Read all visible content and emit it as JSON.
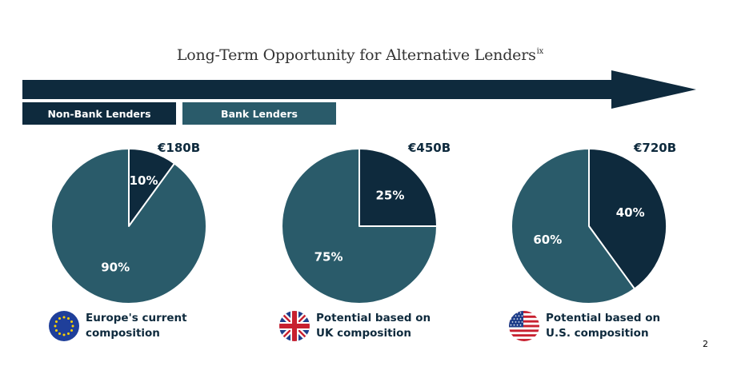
{
  "colors": {
    "non_bank": "#0e2a3d",
    "bank": "#2a5b6a",
    "arrow": "#0e2a3d"
  },
  "chart_data": {
    "type": "pie",
    "title": "Long-Term Opportunity for Alternative Lenders",
    "title_superscript": "ix",
    "legend": [
      "Non-Bank Lenders",
      "Bank Lenders"
    ],
    "charts": [
      {
        "total": "€180B",
        "caption_line1": "Europe's current",
        "caption_line2": "composition",
        "flag_icon": "eu-flag-icon",
        "slices": [
          {
            "label": "Non-Bank Lenders",
            "value": 10,
            "text": "10%"
          },
          {
            "label": "Bank Lenders",
            "value": 90,
            "text": "90%"
          }
        ]
      },
      {
        "total": "€450B",
        "caption_line1": "Potential based on",
        "caption_line2": "UK composition",
        "flag_icon": "uk-flag-icon",
        "slices": [
          {
            "label": "Non-Bank Lenders",
            "value": 25,
            "text": "25%"
          },
          {
            "label": "Bank Lenders",
            "value": 75,
            "text": "75%"
          }
        ]
      },
      {
        "total": "€720B",
        "caption_line1": "Potential based on",
        "caption_line2": "U.S. composition",
        "flag_icon": "us-flag-icon",
        "slices": [
          {
            "label": "Non-Bank Lenders",
            "value": 40,
            "text": "40%"
          },
          {
            "label": "Bank Lenders",
            "value": 60,
            "text": "60%"
          }
        ]
      }
    ]
  },
  "page_number": "2"
}
